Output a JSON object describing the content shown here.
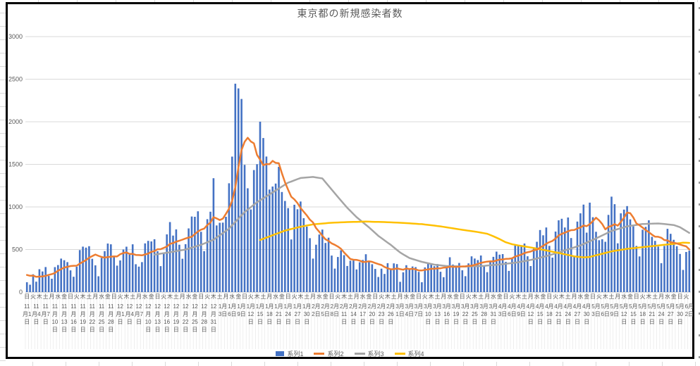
{
  "title": "東京都の新規感染者数",
  "chart_data": {
    "type": "combo (bar + line)",
    "start_date": "2020-11-01",
    "end_date": "2021-06-02",
    "n_days": 214,
    "y_axis": {
      "ticks": [
        0,
        500,
        1000,
        1500,
        2000,
        2500,
        3000
      ],
      "min": 0,
      "max": 3000,
      "grid": true
    },
    "x_axis": {
      "dow_labels_interval_days": 2,
      "dow_labels": "日火木土月水金日火木土月水金日火木土月水金日火木土月水金日火木土月水金日火木土月水金日火木土月水金日火木土月水金日火木土月水金日火木土月水金日火木土月水金日火木土月水金日火木土月水金日火木土月水金日火木土月水金日火",
      "date_labels_interval_days": 3,
      "date_labels": [
        "11月1日",
        "11月4日",
        "11月7日",
        "11月10日",
        "11月13日",
        "11月16日",
        "11月19日",
        "11月22日",
        "11月25日",
        "11月28日",
        "12月1日",
        "12月4日",
        "12月7日",
        "12月10日",
        "12月13日",
        "12月16日",
        "12月19日",
        "12月22日",
        "12月25日",
        "12月28日",
        "12月31日",
        "1月3日",
        "1月6日",
        "1月9日",
        "1月12日",
        "1月15日",
        "1月18日",
        "1月21日",
        "1月24日",
        "1月27日",
        "1月30日",
        "2月2日",
        "2月5日",
        "2月8日",
        "2月11日",
        "2月14日",
        "2月17日",
        "2月20日",
        "2月23日",
        "2月26日",
        "3月1日",
        "3月4日",
        "3月7日",
        "3月10日",
        "3月13日",
        "3月16日",
        "3月19日",
        "3月22日",
        "3月25日",
        "3月28日",
        "3月31日",
        "4月3日",
        "4月6日",
        "4月9日",
        "4月12日",
        "4月15日",
        "4月18日",
        "4月21日",
        "4月24日",
        "4月27日",
        "4月30日",
        "5月3日",
        "5月6日",
        "5月9日",
        "5月12日",
        "5月15日",
        "5月18日",
        "5月21日",
        "5月24日",
        "5月27日",
        "5月30日",
        "6月2日"
      ]
    },
    "series": [
      {
        "name": "系列1",
        "type": "bar",
        "color": "#4472C4",
        "values": [
          116,
          87,
          209,
          122,
          269,
          242,
          294,
          189,
          157,
          293,
          317,
          393,
          374,
          352,
          255,
          180,
          298,
          493,
          534,
          522,
          539,
          391,
          314,
          186,
          401,
          481,
          570,
          561,
          418,
          311,
          372,
          500,
          533,
          449,
          561,
          327,
          299,
          352,
          572,
          602,
          595,
          621,
          480,
          305,
          460,
          678,
          822,
          664,
          736,
          556,
          392,
          563,
          748,
          888,
          884,
          949,
          708,
          481,
          856,
          944,
          1337,
          783,
          814,
          816,
          884,
          1278,
          1591,
          2447,
          2392,
          2268,
          1494,
          1219,
          970,
          1433,
          1502,
          2001,
          1809,
          1592,
          1204,
          1240,
          1274,
          1471,
          1175,
          1070,
          986,
          618,
          1026,
          973,
          1064,
          868,
          769,
          633,
          393,
          556,
          676,
          734,
          577,
          639,
          429,
          276,
          412,
          491,
          434,
          307,
          369,
          371,
          266,
          350,
          378,
          445,
          353,
          327,
          272,
          178,
          275,
          213,
          340,
          270,
          337,
          329,
          121,
          232,
          316,
          279,
          301,
          293,
          237,
          116,
          290,
          340,
          335,
          304,
          330,
          239,
          175,
          300,
          409,
          323,
          303,
          342,
          256,
          187,
          337,
          420,
          394,
          376,
          430,
          313,
          234,
          364,
          414,
          475,
          440,
          446,
          355,
          249,
          399,
          555,
          545,
          537,
          570,
          421,
          306,
          510,
          591,
          729,
          667,
          759,
          543,
          405,
          711,
          843,
          861,
          759,
          876,
          635,
          425,
          828,
          925,
          1027,
          698,
          1050,
          879,
          708,
          609,
          621,
          591,
          907,
          1121,
          1032,
          573,
          925,
          969,
          1010,
          854,
          772,
          542,
          419,
          732,
          766,
          843,
          649,
          602,
          535,
          340,
          542,
          743,
          684,
          614,
          539,
          448,
          260,
          471,
          487
        ]
      },
      {
        "name": "系列2",
        "type": "line",
        "color": "#ED7D31",
        "definition": "7-day trailing moving average of 系列1",
        "seed_prev_days": [
          150,
          200,
          220,
          250,
          230,
          240
        ]
      },
      {
        "name": "系列3",
        "type": "line",
        "color": "#A5A5A5",
        "anchors": [
          [
            41,
            440
          ],
          [
            46,
            468
          ],
          [
            51,
            500
          ],
          [
            56,
            555
          ],
          [
            60,
            615
          ],
          [
            65,
            745
          ],
          [
            70,
            940
          ],
          [
            74,
            1055
          ],
          [
            79,
            1170
          ],
          [
            84,
            1285
          ],
          [
            88,
            1340
          ],
          [
            92,
            1352
          ],
          [
            95,
            1335
          ],
          [
            99,
            1160
          ],
          [
            103,
            990
          ],
          [
            106,
            880
          ],
          [
            110,
            760
          ],
          [
            113,
            660
          ],
          [
            117,
            555
          ],
          [
            120,
            465
          ],
          [
            123,
            400
          ],
          [
            127,
            355
          ],
          [
            131,
            322
          ],
          [
            135,
            306
          ],
          [
            141,
            300
          ],
          [
            147,
            308
          ],
          [
            152,
            325
          ],
          [
            158,
            350
          ],
          [
            163,
            385
          ],
          [
            168,
            432
          ],
          [
            173,
            490
          ],
          [
            178,
            548
          ],
          [
            183,
            630
          ],
          [
            188,
            718
          ],
          [
            193,
            772
          ],
          [
            198,
            800
          ],
          [
            203,
            806
          ],
          [
            208,
            788
          ],
          [
            210,
            762
          ],
          [
            213,
            695
          ]
        ]
      },
      {
        "name": "系列4",
        "type": "line",
        "color": "#FFC000",
        "anchors": [
          [
            75,
            612
          ],
          [
            79,
            668
          ],
          [
            83,
            722
          ],
          [
            88,
            768
          ],
          [
            92,
            795
          ],
          [
            97,
            812
          ],
          [
            103,
            822
          ],
          [
            109,
            828
          ],
          [
            115,
            822
          ],
          [
            121,
            812
          ],
          [
            127,
            798
          ],
          [
            133,
            772
          ],
          [
            139,
            737
          ],
          [
            145,
            705
          ],
          [
            148,
            685
          ],
          [
            150,
            655
          ],
          [
            152,
            622
          ],
          [
            154,
            585
          ],
          [
            156,
            562
          ],
          [
            158,
            548
          ],
          [
            163,
            518
          ],
          [
            168,
            482
          ],
          [
            172,
            452
          ],
          [
            176,
            420
          ],
          [
            179,
            408
          ],
          [
            181,
            412
          ],
          [
            183,
            432
          ],
          [
            188,
            478
          ],
          [
            193,
            508
          ],
          [
            198,
            528
          ],
          [
            203,
            548
          ],
          [
            208,
            566
          ],
          [
            211,
            580
          ],
          [
            213,
            578
          ]
        ]
      }
    ],
    "colors": {
      "gridline": "#D9D9D9",
      "axis_text": "#595959",
      "frame_border": "#000000",
      "category_stripe": "#E8E8E8"
    },
    "legend_position": "bottom"
  }
}
